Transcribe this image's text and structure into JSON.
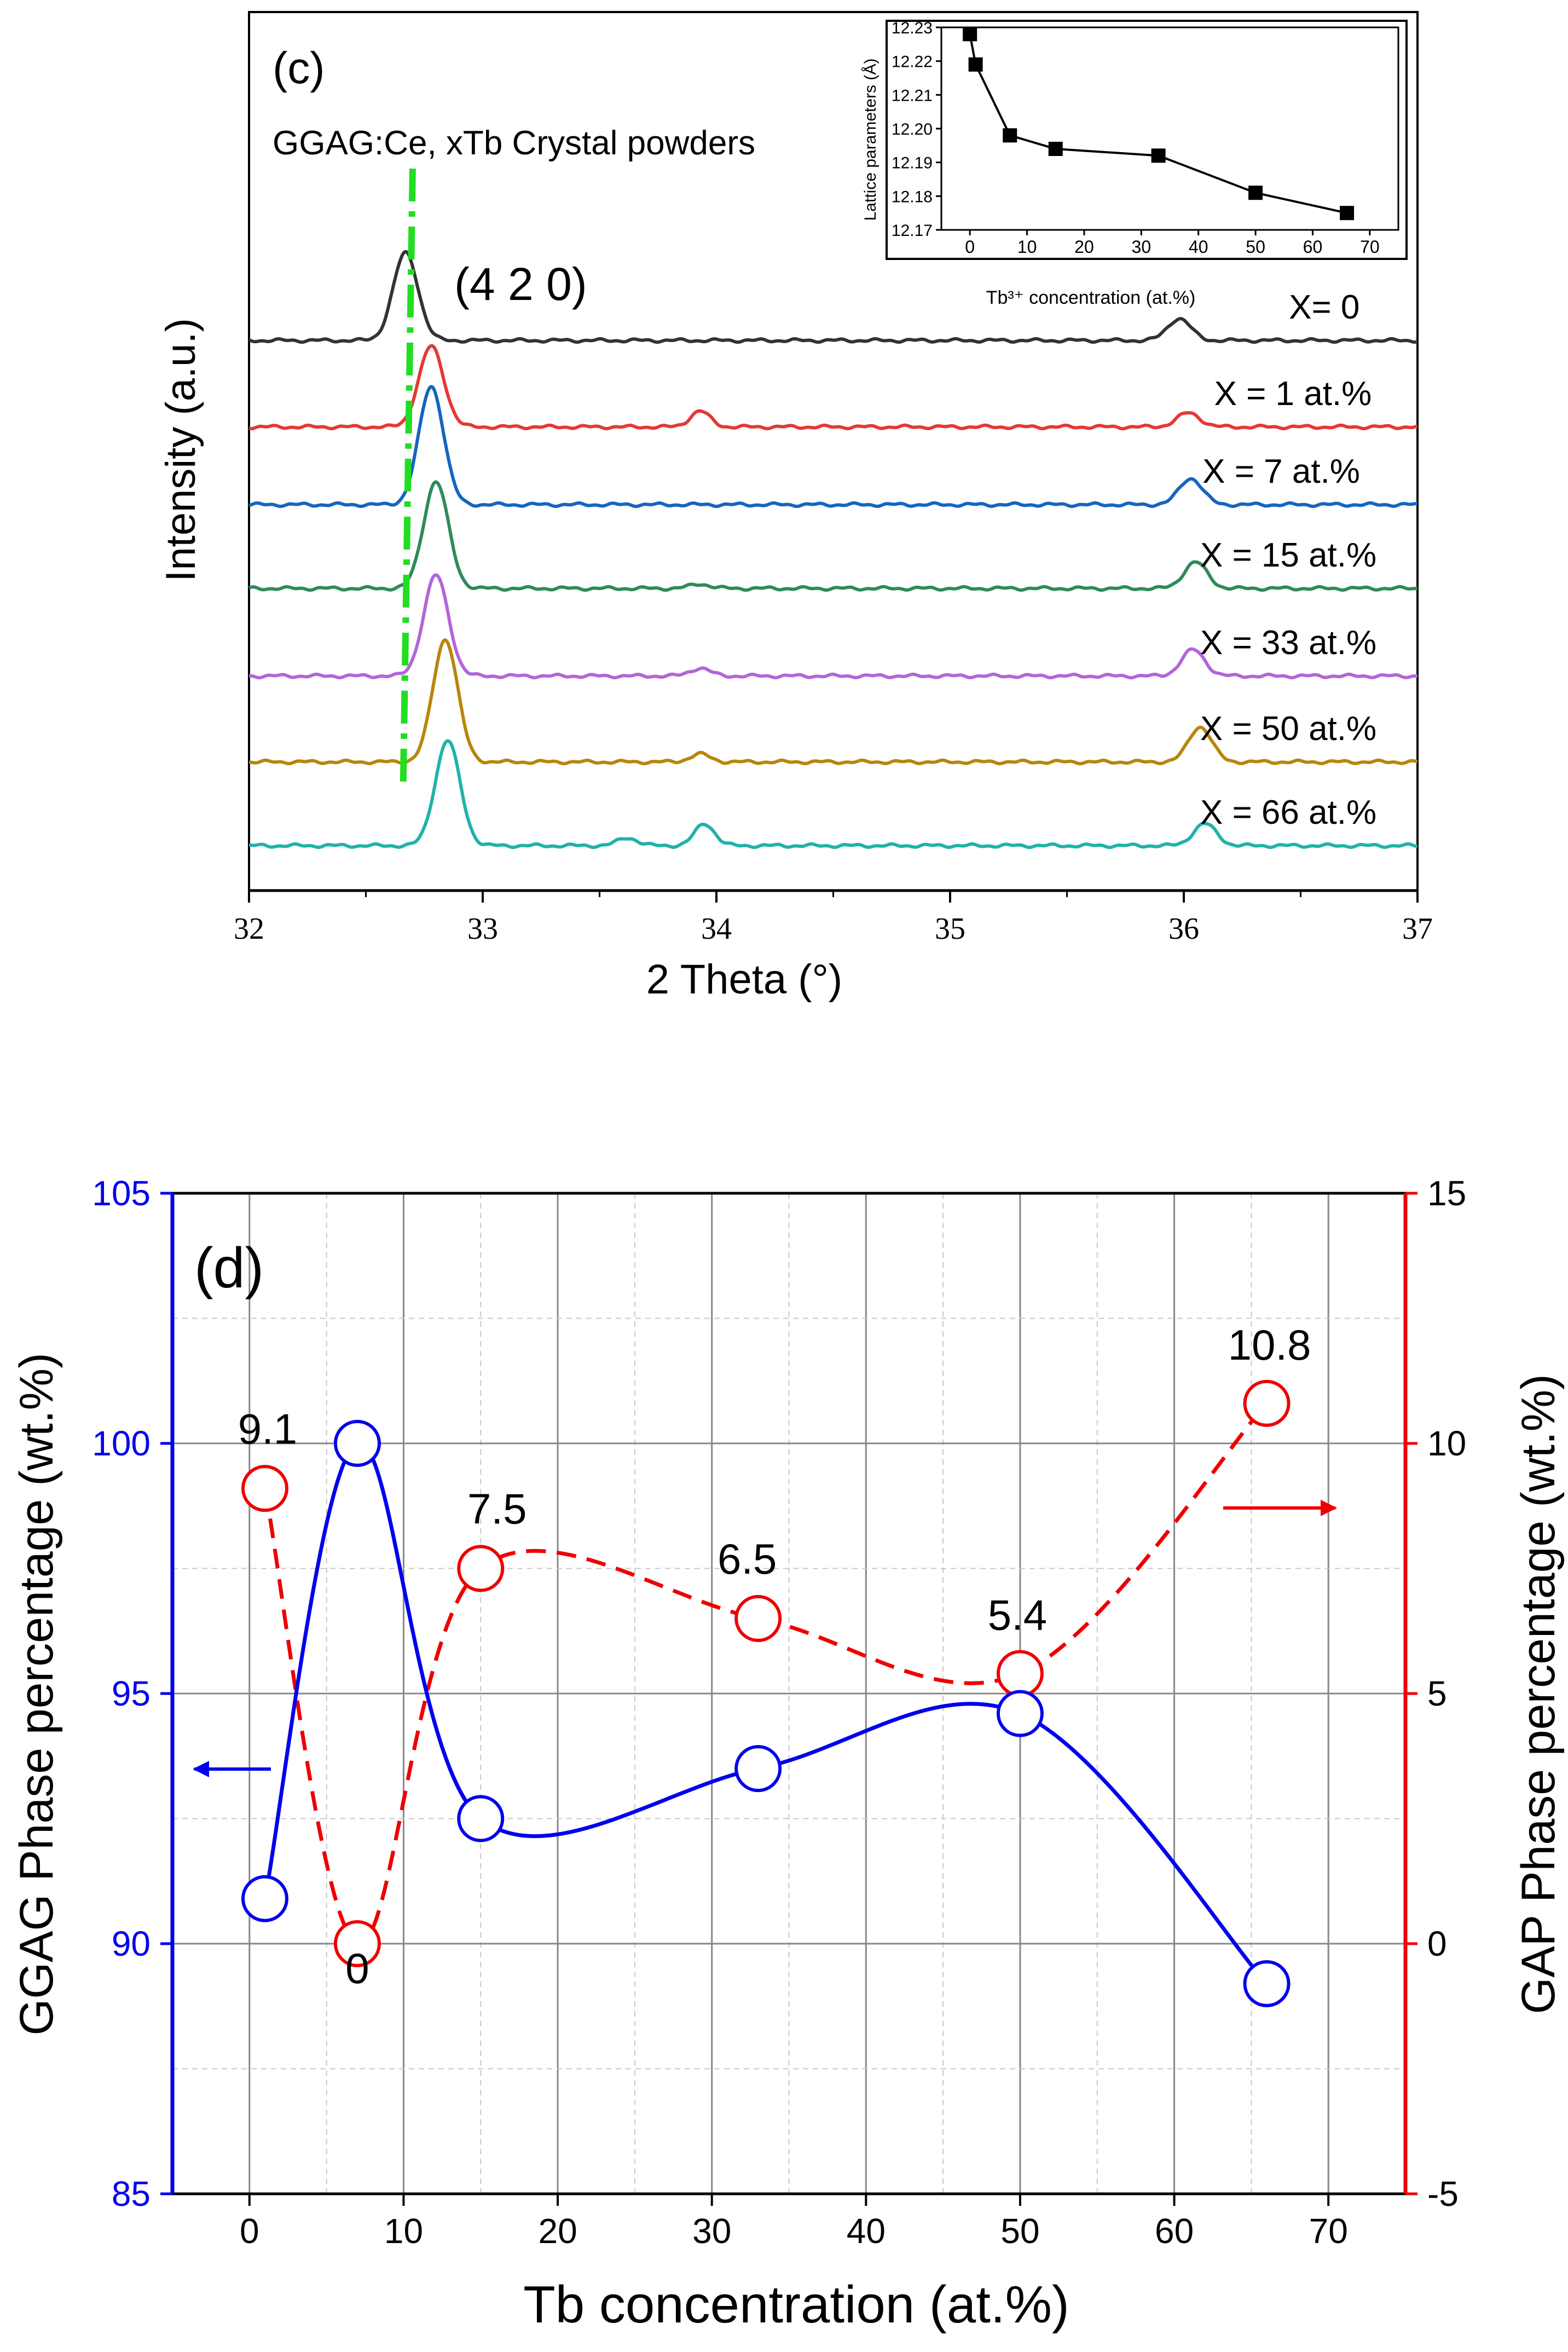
{
  "chart_data": [
    {
      "panel": "c",
      "type": "line",
      "title": "GGAG:Ce, xTb Crystal powders",
      "panel_label": "(c)",
      "peak_label": "(4 2 0)",
      "xlabel": "2 Theta (°)",
      "ylabel": "Intensity (a.u.)",
      "xlim": [
        32,
        37
      ],
      "xticks": [
        "32",
        "33",
        "34",
        "35",
        "36",
        "37"
      ],
      "reference_line_x": [
        32.7,
        32.66
      ],
      "series": [
        {
          "name": "X= 0",
          "color": "#333333",
          "peak1": 32.67,
          "peak2": 35.98,
          "h1": 1.0,
          "h2": 0.25,
          "minor": [],
          "label_x": 36.45
        },
        {
          "name": "X = 1 at.%",
          "color": "#e53935",
          "peak1": 32.78,
          "peak2": 36.02,
          "h1": 0.92,
          "h2": 0.16,
          "minor": [
            [
              33.93,
              0.18
            ]
          ],
          "label_x": 36.13
        },
        {
          "name": "X = 7 at.%",
          "color": "#1565c0",
          "peak1": 32.78,
          "peak2": 36.03,
          "h1": 1.35,
          "h2": 0.3,
          "minor": [],
          "label_x": 36.08
        },
        {
          "name": "X = 15 at.%",
          "color": "#2e8b57",
          "peak1": 32.8,
          "peak2": 36.05,
          "h1": 1.22,
          "h2": 0.3,
          "minor": [
            [
              33.93,
              0.05
            ]
          ],
          "label_x": 36.07
        },
        {
          "name": "X = 33 at.%",
          "color": "#b266d9",
          "peak1": 32.8,
          "peak2": 36.04,
          "h1": 1.15,
          "h2": 0.3,
          "minor": [
            [
              33.93,
              0.09
            ]
          ],
          "label_x": 36.07
        },
        {
          "name": "X = 50 at.%",
          "color": "#b8860b",
          "peak1": 32.84,
          "peak2": 36.07,
          "h1": 1.4,
          "h2": 0.4,
          "minor": [
            [
              33.93,
              0.09
            ]
          ],
          "label_x": 36.07
        },
        {
          "name": "X = 66 at.%",
          "color": "#20b2aa",
          "peak1": 32.85,
          "peak2": 36.09,
          "h1": 1.2,
          "h2": 0.25,
          "minor": [
            [
              33.62,
              0.09
            ],
            [
              33.95,
              0.25
            ]
          ],
          "label_x": 36.07
        }
      ],
      "inset": {
        "type": "line",
        "xlabel": "Tb³⁺ concentration (at.%)",
        "ylabel": "Lattice parameters (Å)",
        "xlim": [
          -5,
          75
        ],
        "ylim": [
          12.17,
          12.23
        ],
        "xticks": [
          "0",
          "10",
          "20",
          "30",
          "40",
          "50",
          "60",
          "70"
        ],
        "yticks": [
          "12.17",
          "12.18",
          "12.19",
          "12.20",
          "12.21",
          "12.22",
          "12.23"
        ],
        "x": [
          0,
          1,
          7,
          15,
          33,
          50,
          66
        ],
        "y": [
          12.228,
          12.219,
          12.198,
          12.194,
          12.192,
          12.181,
          12.175
        ]
      }
    },
    {
      "panel": "d",
      "type": "scatter",
      "panel_label": "(d)",
      "xlabel": "Tb concentration (at.%)",
      "ylabel_left": "GGAG Phase percentage (wt.%)",
      "ylabel_right": "GAP Phase percentage (wt.%)",
      "xlim": [
        -5,
        75
      ],
      "ylim_left": [
        85,
        105
      ],
      "ylim_right": [
        -5,
        15
      ],
      "xticks": [
        "0",
        "10",
        "20",
        "30",
        "40",
        "50",
        "60",
        "70"
      ],
      "yticks_left": [
        "85",
        "90",
        "95",
        "100",
        "105"
      ],
      "yticks_right": [
        "-5",
        "0",
        "5",
        "10",
        "15"
      ],
      "left_color": "#0000ee",
      "right_color": "#ee0000",
      "series": [
        {
          "name": "GGAG",
          "axis": "left",
          "x": [
            1,
            7,
            15,
            33,
            50,
            66
          ],
          "y": [
            90.9,
            100.0,
            92.5,
            93.5,
            94.6,
            89.2
          ]
        },
        {
          "name": "GAP",
          "axis": "right",
          "x": [
            1,
            7,
            15,
            33,
            50,
            66
          ],
          "y": [
            9.1,
            0,
            7.5,
            6.5,
            5.4,
            10.8
          ],
          "labels": [
            "9.1",
            "0",
            "7.5",
            "6.5",
            "5.4",
            "10.8"
          ]
        }
      ]
    }
  ]
}
